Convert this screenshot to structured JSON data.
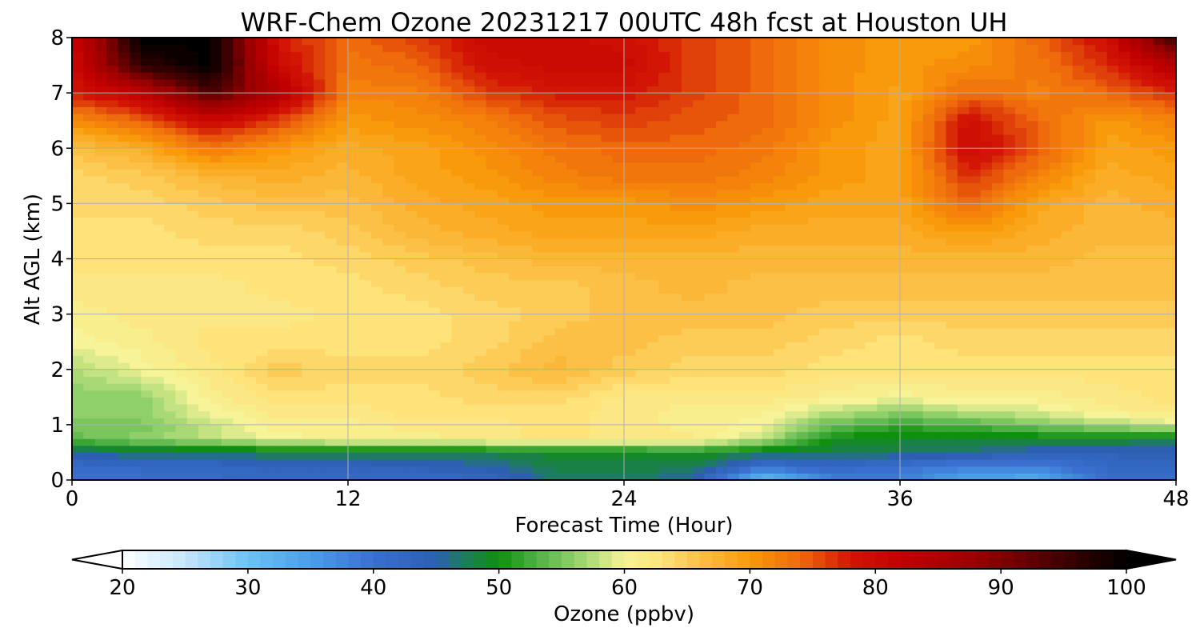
{
  "chart_data": {
    "type": "heatmap",
    "title": "WRF-Chem Ozone  20231217 00UTC 48h fcst at Houston UH",
    "xlabel": "Forecast Time (Hour)",
    "ylabel": "Alt AGL (km)",
    "xlim": [
      0,
      48
    ],
    "ylim": [
      0,
      8
    ],
    "x_ticks": [
      0,
      12,
      24,
      36,
      48
    ],
    "y_ticks": [
      0,
      1,
      2,
      3,
      4,
      5,
      6,
      7,
      8
    ],
    "grid": true,
    "x_hours": [
      0,
      3,
      6,
      9,
      12,
      15,
      18,
      21,
      24,
      27,
      30,
      33,
      36,
      39,
      42,
      45,
      48
    ],
    "y_km": [
      0,
      0.25,
      0.5,
      0.75,
      1,
      1.25,
      1.5,
      2,
      2.5,
      3,
      3.5,
      4,
      4.5,
      5,
      5.5,
      6,
      6.5,
      7,
      7.5,
      8
    ],
    "ozone_ppbv": [
      [
        39,
        40,
        41,
        42,
        41,
        41,
        42,
        47,
        47,
        45,
        30,
        38,
        38,
        34,
        33,
        40,
        41
      ],
      [
        41,
        42,
        42,
        43,
        43,
        44,
        45,
        48,
        48,
        48,
        40,
        42,
        40,
        38,
        38,
        42,
        42
      ],
      [
        46,
        47,
        47,
        48,
        48,
        48,
        48,
        49,
        49,
        50,
        48,
        48,
        47,
        46,
        44,
        44,
        44
      ],
      [
        54,
        56,
        58,
        60,
        61,
        61,
        62,
        63,
        62,
        62,
        58,
        50,
        49,
        49,
        49,
        49,
        48
      ],
      [
        55,
        55,
        58,
        61,
        61,
        62,
        62,
        63,
        62,
        61,
        60,
        54,
        52,
        53,
        55,
        57,
        59
      ],
      [
        56,
        56,
        60,
        62,
        62,
        63,
        63,
        63,
        62,
        61,
        61,
        58,
        56,
        58,
        59,
        61,
        62
      ],
      [
        56,
        56,
        61,
        63,
        63,
        63,
        64,
        64,
        62,
        62,
        62,
        61,
        60,
        61,
        61,
        62,
        63
      ],
      [
        57,
        60,
        62,
        65,
        64,
        64,
        65,
        67,
        65,
        64,
        64,
        63,
        63,
        63,
        63,
        63,
        63
      ],
      [
        60,
        61,
        63,
        63,
        63,
        63,
        64,
        66,
        66,
        65,
        65,
        64,
        63,
        64,
        64,
        64,
        64
      ],
      [
        61,
        62,
        62,
        62,
        63,
        63,
        64,
        65,
        66,
        66,
        66,
        65,
        65,
        65,
        65,
        65,
        65
      ],
      [
        62,
        62,
        62,
        63,
        63,
        64,
        65,
        65,
        66,
        67,
        66,
        66,
        66,
        66,
        66,
        66,
        66
      ],
      [
        63,
        63,
        63,
        63,
        64,
        65,
        66,
        67,
        67,
        67,
        67,
        67,
        67,
        67,
        67,
        66,
        66
      ],
      [
        63,
        63,
        64,
        64,
        65,
        67,
        68,
        69,
        69,
        69,
        68,
        68,
        68,
        70,
        68,
        67,
        67
      ],
      [
        64,
        64,
        65,
        66,
        66,
        68,
        69,
        70,
        70,
        71,
        70,
        69,
        69,
        74,
        69,
        67,
        68
      ],
      [
        64,
        65,
        67,
        68,
        67,
        69,
        70,
        72,
        73,
        73,
        72,
        70,
        69,
        77,
        72,
        68,
        69
      ],
      [
        66,
        68,
        73,
        70,
        68,
        69,
        71,
        73,
        74,
        74,
        73,
        70,
        69,
        80,
        75,
        69,
        70
      ],
      [
        71,
        74,
        80,
        76,
        70,
        71,
        72,
        75,
        76,
        75,
        74,
        71,
        69,
        79,
        74,
        70,
        72
      ],
      [
        78,
        82,
        94,
        84,
        72,
        72,
        76,
        78,
        78,
        76,
        74,
        71,
        69,
        74,
        72,
        74,
        77
      ],
      [
        80,
        96,
        100,
        80,
        73,
        74,
        79,
        80,
        80,
        76,
        74,
        71,
        70,
        71,
        73,
        77,
        84
      ],
      [
        80,
        100,
        100,
        78,
        74,
        76,
        80,
        80,
        79,
        76,
        74,
        71,
        70,
        70,
        74,
        79,
        96
      ]
    ],
    "colorbar": {
      "label": "Ozone  (ppbv)",
      "min": 20,
      "max": 100,
      "ticks": [
        20,
        30,
        40,
        50,
        60,
        70,
        80,
        90,
        100
      ],
      "extend": "both",
      "stops": [
        {
          "v": 20,
          "c": "#ffffff"
        },
        {
          "v": 25,
          "c": "#c4e6fb"
        },
        {
          "v": 30,
          "c": "#6cc2f3"
        },
        {
          "v": 35,
          "c": "#4a9ee8"
        },
        {
          "v": 40,
          "c": "#3a6fd0"
        },
        {
          "v": 45,
          "c": "#2c5fb0"
        },
        {
          "v": 47,
          "c": "#1f7a62"
        },
        {
          "v": 50,
          "c": "#0e8f0e"
        },
        {
          "v": 53,
          "c": "#4fb045"
        },
        {
          "v": 56,
          "c": "#8fd06a"
        },
        {
          "v": 60,
          "c": "#f7f398"
        },
        {
          "v": 63,
          "c": "#fde37a"
        },
        {
          "v": 66,
          "c": "#fcc046"
        },
        {
          "v": 70,
          "c": "#f99a0a"
        },
        {
          "v": 74,
          "c": "#ee6a0c"
        },
        {
          "v": 78,
          "c": "#d21505"
        },
        {
          "v": 82,
          "c": "#c20000"
        },
        {
          "v": 88,
          "c": "#9a0000"
        },
        {
          "v": 94,
          "c": "#4a0000"
        },
        {
          "v": 100,
          "c": "#000000"
        }
      ]
    }
  }
}
